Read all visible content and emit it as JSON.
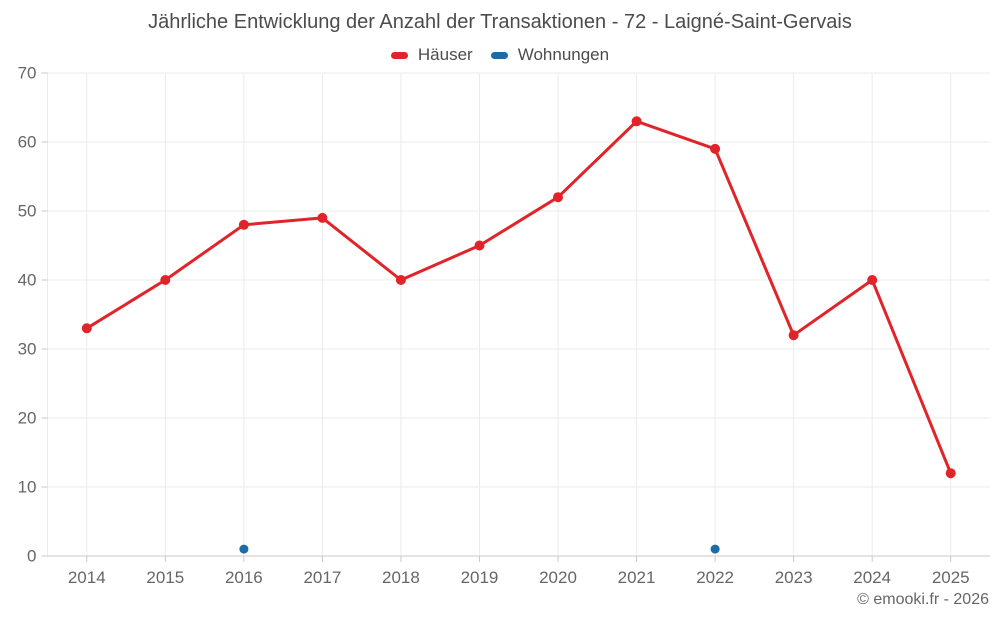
{
  "header": {
    "title": "Jährliche Entwicklung der Anzahl der Transaktionen - 72 - Laigné-Saint-Gervais"
  },
  "footer": {
    "copyright": "© emooki.fr - 2026"
  },
  "colors": {
    "haeuser_red": "#e02429",
    "wohnungen_blue": "#1b6ca8",
    "grid": "#ebebeb",
    "axis": "#c9c9c9",
    "tick_label": "#666666",
    "title_text": "#4c4c4c",
    "legend_text": "#4c4c4c",
    "copyright_text": "#666666"
  },
  "chart_data": {
    "type": "line",
    "title": "Jährliche Entwicklung der Anzahl der Transaktionen - 72 - Laigné-Saint-Gervais",
    "categories": [
      "2014",
      "2015",
      "2016",
      "2017",
      "2018",
      "2019",
      "2020",
      "2021",
      "2022",
      "2023",
      "2024",
      "2025"
    ],
    "series": [
      {
        "key": "haeuser",
        "name": "Häuser",
        "color": "#e02429",
        "marker_radius": 5,
        "values": [
          33,
          40,
          48,
          49,
          40,
          45,
          52,
          63,
          59,
          32,
          40,
          12
        ]
      },
      {
        "key": "wohnungen",
        "name": "Wohnungen",
        "color": "#1b6ca8",
        "marker_radius": 4.5,
        "values": [
          null,
          null,
          1,
          null,
          null,
          null,
          null,
          null,
          1,
          null,
          null,
          null
        ]
      }
    ],
    "xlabel": "",
    "ylabel": "",
    "ylim": [
      0,
      70
    ],
    "ytick_step": 10,
    "grid": true,
    "legend_position": "top"
  }
}
